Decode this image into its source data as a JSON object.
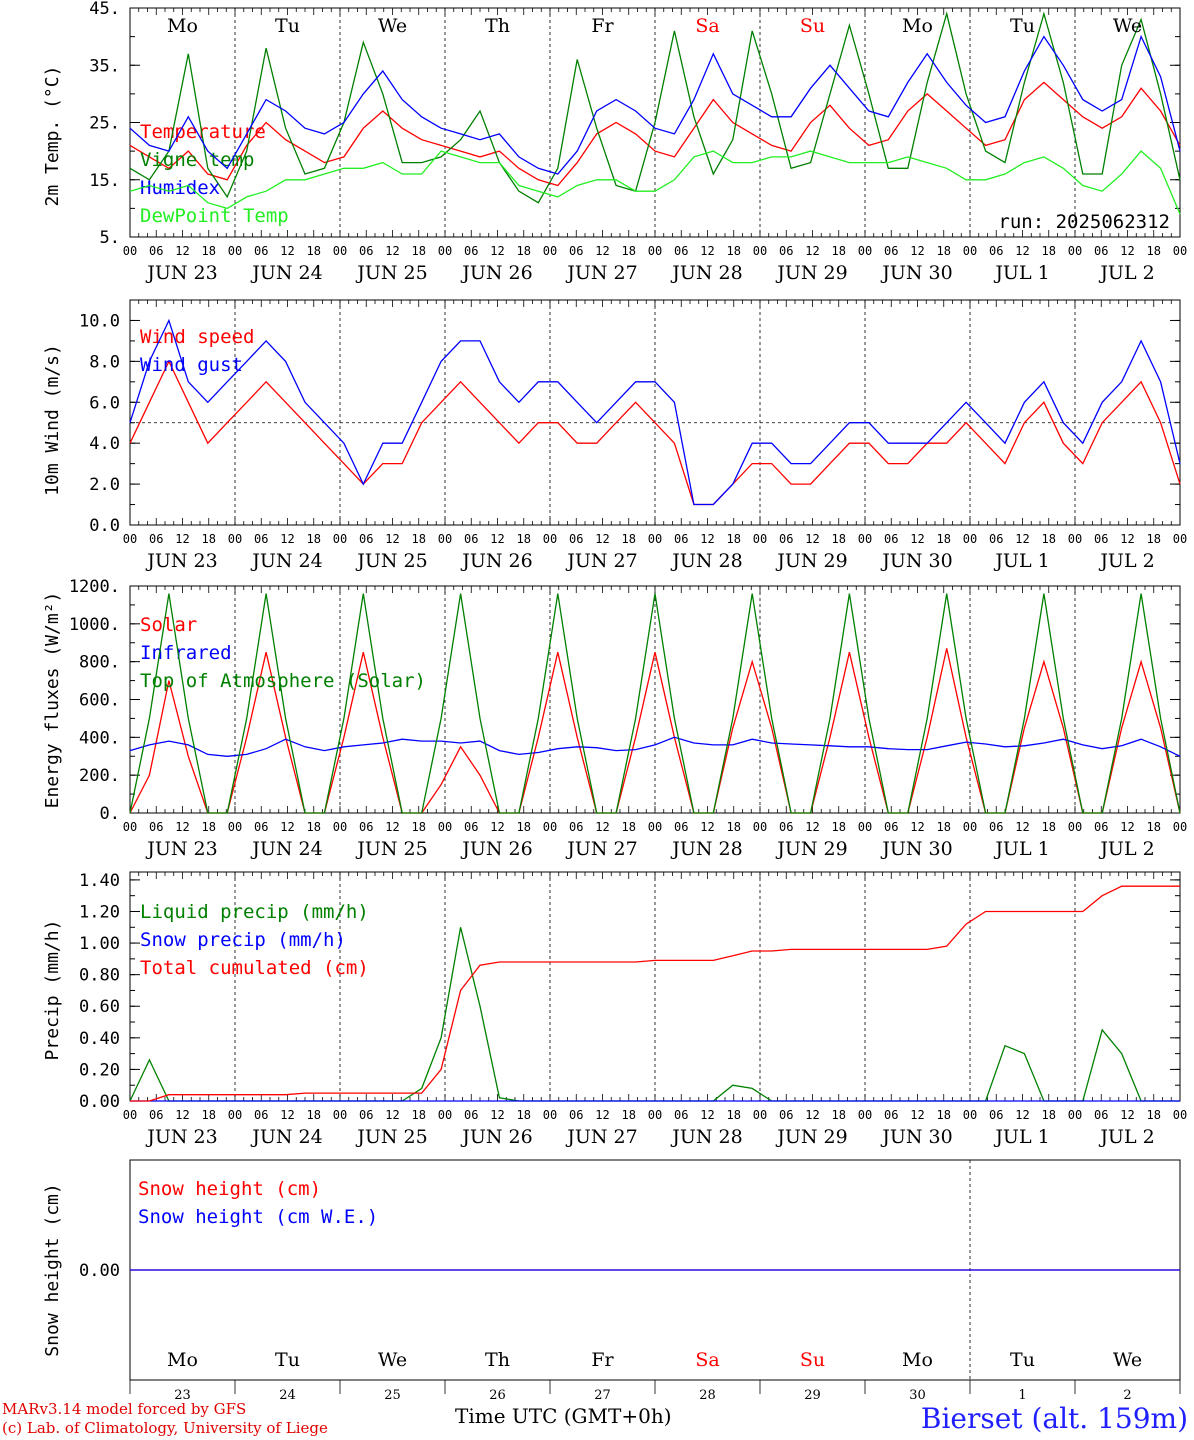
{
  "credits": {
    "line1": "MARv3.14 model forced by GFS",
    "line2": "(c) Lab. of Climatology, University of Liege"
  },
  "station": "Bierset (alt. 159m)",
  "x_axis_title": "Time UTC (GMT+0h)",
  "run_label": "run: 2025062312",
  "colors": {
    "red": "#ff0000",
    "green": "#008000",
    "blue": "#0000ff",
    "light_green": "#22ee22",
    "weekend": "#ff0000",
    "axis": "#000000"
  },
  "day_labels": [
    "Mo",
    "Tu",
    "We",
    "Th",
    "Fr",
    "Sa",
    "Su",
    "Mo",
    "Tu",
    "We"
  ],
  "weekend_flags": [
    false,
    false,
    false,
    false,
    false,
    true,
    true,
    false,
    false,
    false
  ],
  "date_labels": [
    "JUN 23",
    "JUN 24",
    "JUN 25",
    "JUN 26",
    "JUN 27",
    "JUN 28",
    "JUN 29",
    "JUN 30",
    "JUL  1",
    "JUL  2"
  ],
  "day_numbers": [
    "23",
    "24",
    "25",
    "26",
    "27",
    "28",
    "29",
    "30",
    "1",
    "2"
  ],
  "hour_ticks": [
    "00",
    "06",
    "12",
    "18"
  ],
  "final_hour_tick": "00",
  "chart_data": [
    {
      "type": "line",
      "ylabel": "2m Temp. (°C)",
      "ylim": [
        5,
        45
      ],
      "yticks": [
        "5.",
        "15.",
        "25.",
        "35.",
        "45."
      ],
      "x": "hours since Jun 23 00 UTC, step 6",
      "series": [
        {
          "name": "Temperature",
          "color": "#ff0000",
          "values": [
            21,
            19,
            17,
            20,
            16,
            15,
            21,
            25,
            22,
            20,
            18,
            19,
            24,
            27,
            24,
            22,
            21,
            20,
            19,
            20,
            17,
            15,
            14,
            18,
            23,
            25,
            23,
            20,
            19,
            24,
            29,
            25,
            23,
            21,
            20,
            25,
            28,
            24,
            21,
            22,
            27,
            30,
            27,
            24,
            21,
            22,
            29,
            32,
            29,
            26,
            24,
            26,
            31,
            27,
            21
          ]
        },
        {
          "name": "Vigne temp",
          "color": "#008000",
          "values": [
            17,
            15,
            20,
            37,
            17,
            12,
            20,
            38,
            24,
            16,
            17,
            25,
            39,
            30,
            18,
            18,
            19,
            22,
            27,
            18,
            13,
            11,
            17,
            36,
            24,
            14,
            13,
            25,
            41,
            26,
            16,
            22,
            41,
            30,
            17,
            18,
            30,
            42,
            30,
            17,
            17,
            32,
            44,
            30,
            20,
            18,
            32,
            44,
            32,
            16,
            16,
            35,
            43,
            30,
            15
          ]
        },
        {
          "name": "Humidex",
          "color": "#0000ff",
          "values": [
            24,
            21,
            20,
            26,
            20,
            17,
            23,
            29,
            27,
            24,
            23,
            25,
            30,
            34,
            29,
            26,
            24,
            23,
            22,
            23,
            19,
            17,
            16,
            20,
            27,
            29,
            27,
            24,
            23,
            29,
            37,
            30,
            28,
            26,
            26,
            31,
            35,
            31,
            27,
            26,
            32,
            37,
            32,
            28,
            25,
            26,
            34,
            40,
            35,
            29,
            27,
            29,
            40,
            33,
            20
          ]
        },
        {
          "name": "DewPoint Temp",
          "color": "#22ee22",
          "values": [
            13,
            14,
            13,
            14,
            11,
            10,
            12,
            13,
            15,
            15,
            16,
            17,
            17,
            18,
            16,
            16,
            20,
            19,
            18,
            18,
            14,
            13,
            12,
            14,
            15,
            15,
            13,
            13,
            15,
            19,
            20,
            18,
            18,
            19,
            19,
            20,
            19,
            18,
            18,
            18,
            19,
            18,
            17,
            15,
            15,
            16,
            18,
            19,
            17,
            14,
            13,
            16,
            20,
            17,
            9
          ]
        }
      ],
      "annotation": "run: 2025062312"
    },
    {
      "type": "line",
      "ylabel": "10m Wind (m/s)",
      "ylim": [
        0,
        11
      ],
      "yticks": [
        "0.0",
        "2.0",
        "4.0",
        "6.0",
        "8.0",
        "10.0"
      ],
      "reference_line": 5,
      "series": [
        {
          "name": "Wind speed",
          "color": "#ff0000",
          "values": [
            4,
            6,
            8,
            6,
            4,
            5,
            6,
            7,
            6,
            5,
            4,
            3,
            2,
            3,
            3,
            5,
            6,
            7,
            6,
            5,
            4,
            5,
            5,
            4,
            4,
            5,
            6,
            5,
            4,
            1,
            1,
            2,
            3,
            3,
            2,
            2,
            3,
            4,
            4,
            3,
            3,
            4,
            4,
            5,
            4,
            3,
            5,
            6,
            4,
            3,
            5,
            6,
            7,
            5,
            2
          ]
        },
        {
          "name": "Wind gust",
          "color": "#0000ff",
          "values": [
            5,
            8,
            10,
            7,
            6,
            7,
            8,
            9,
            8,
            6,
            5,
            4,
            2,
            4,
            4,
            6,
            8,
            9,
            9,
            7,
            6,
            7,
            7,
            6,
            5,
            6,
            7,
            7,
            6,
            1,
            1,
            2,
            4,
            4,
            3,
            3,
            4,
            5,
            5,
            4,
            4,
            4,
            5,
            6,
            5,
            4,
            6,
            7,
            5,
            4,
            6,
            7,
            9,
            7,
            3
          ]
        }
      ]
    },
    {
      "type": "line",
      "ylabel": "Energy fluxes (W/m²)",
      "ylim": [
        0,
        1200
      ],
      "yticks": [
        "0.",
        "200.",
        "400.",
        "600.",
        "800.",
        "1000.",
        "1200."
      ],
      "series": [
        {
          "name": "Solar",
          "color": "#ff0000",
          "values": [
            0,
            200,
            700,
            300,
            0,
            0,
            400,
            850,
            400,
            0,
            0,
            400,
            850,
            400,
            0,
            0,
            150,
            350,
            200,
            0,
            0,
            400,
            850,
            400,
            0,
            0,
            400,
            850,
            400,
            0,
            0,
            450,
            800,
            450,
            0,
            0,
            400,
            850,
            400,
            0,
            0,
            400,
            870,
            400,
            0,
            0,
            450,
            800,
            450,
            0,
            0,
            450,
            800,
            450,
            0
          ]
        },
        {
          "name": "Infrared",
          "color": "#0000ff",
          "values": [
            330,
            360,
            380,
            360,
            310,
            300,
            310,
            340,
            390,
            350,
            330,
            350,
            360,
            370,
            390,
            380,
            380,
            370,
            380,
            330,
            310,
            320,
            340,
            350,
            345,
            330,
            335,
            360,
            400,
            370,
            360,
            360,
            390,
            370,
            365,
            360,
            355,
            350,
            350,
            340,
            335,
            335,
            355,
            375,
            365,
            350,
            355,
            370,
            390,
            360,
            340,
            355,
            390,
            350,
            300
          ]
        },
        {
          "name": "Top of Atmosphere (Solar)",
          "color": "#008000",
          "values": [
            0,
            500,
            1160,
            500,
            0,
            0,
            500,
            1160,
            500,
            0,
            0,
            500,
            1160,
            500,
            0,
            0,
            500,
            1160,
            500,
            0,
            0,
            500,
            1160,
            500,
            0,
            0,
            500,
            1160,
            500,
            0,
            0,
            500,
            1160,
            500,
            0,
            0,
            500,
            1160,
            500,
            0,
            0,
            500,
            1160,
            500,
            0,
            0,
            500,
            1160,
            500,
            0,
            0,
            500,
            1160,
            500,
            0
          ]
        }
      ]
    },
    {
      "type": "line",
      "ylabel": "Precip (mm/h)",
      "ylim": [
        0,
        1.45
      ],
      "yticks": [
        "0.00",
        "0.20",
        "0.40",
        "0.60",
        "0.80",
        "1.00",
        "1.20",
        "1.40"
      ],
      "series": [
        {
          "name": "Liquid precip (mm/h)",
          "color": "#008000",
          "values": [
            0,
            0.26,
            0,
            0,
            0,
            0,
            0,
            0,
            0,
            0,
            0,
            0,
            0,
            0,
            0,
            0.08,
            0.4,
            1.1,
            0.6,
            0.02,
            0,
            0,
            0,
            0,
            0,
            0,
            0,
            0,
            0,
            0,
            0,
            0.1,
            0.08,
            0,
            0,
            0,
            0,
            0,
            0,
            0,
            0,
            0,
            0,
            0,
            0,
            0.35,
            0.3,
            0,
            0,
            0,
            0.45,
            0.3,
            0,
            0,
            0
          ]
        },
        {
          "name": "Snow precip (mm/h)",
          "color": "#0000ff",
          "values": [
            0,
            0,
            0,
            0,
            0,
            0,
            0,
            0,
            0,
            0,
            0,
            0,
            0,
            0,
            0,
            0,
            0,
            0,
            0,
            0,
            0,
            0,
            0,
            0,
            0,
            0,
            0,
            0,
            0,
            0,
            0,
            0,
            0,
            0,
            0,
            0,
            0,
            0,
            0,
            0,
            0,
            0,
            0,
            0,
            0,
            0,
            0,
            0,
            0,
            0,
            0,
            0,
            0,
            0,
            0
          ]
        },
        {
          "name": "Total cumulated (cm)",
          "color": "#ff0000",
          "values": [
            0,
            0,
            0.04,
            0.04,
            0.04,
            0.04,
            0.04,
            0.04,
            0.04,
            0.05,
            0.05,
            0.05,
            0.05,
            0.05,
            0.05,
            0.05,
            0.2,
            0.7,
            0.86,
            0.88,
            0.88,
            0.88,
            0.88,
            0.88,
            0.88,
            0.88,
            0.88,
            0.89,
            0.89,
            0.89,
            0.89,
            0.92,
            0.95,
            0.95,
            0.96,
            0.96,
            0.96,
            0.96,
            0.96,
            0.96,
            0.96,
            0.96,
            0.98,
            1.12,
            1.2,
            1.2,
            1.2,
            1.2,
            1.2,
            1.2,
            1.3,
            1.36,
            1.36,
            1.36,
            1.36
          ]
        }
      ]
    },
    {
      "type": "line",
      "ylabel": "Snow height (cm)",
      "yticks": [
        "0.00"
      ],
      "series": [
        {
          "name": "Snow height (cm)",
          "color": "#ff0000",
          "values": [
            0,
            0
          ]
        },
        {
          "name": "Snow height (cm W.E.)",
          "color": "#0000ff",
          "values": [
            0,
            0
          ]
        }
      ]
    }
  ]
}
